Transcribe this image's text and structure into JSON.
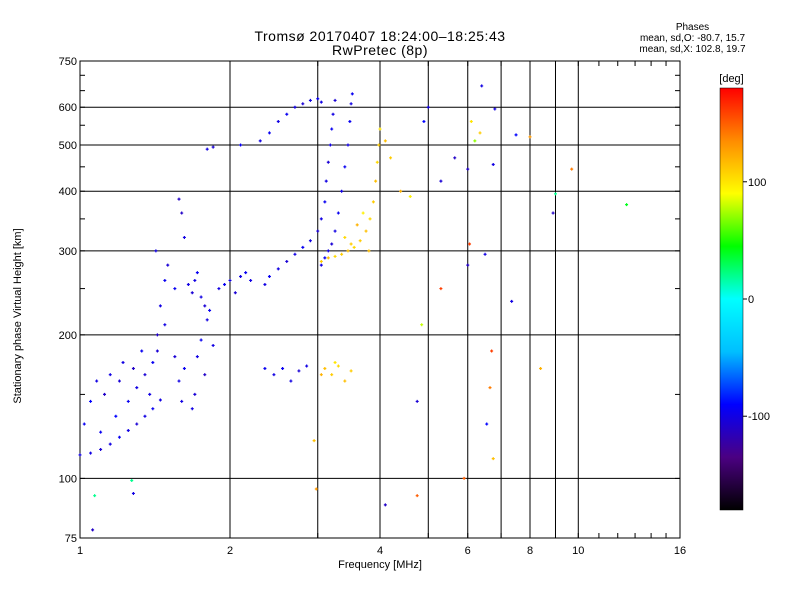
{
  "chart_data": {
    "type": "scatter",
    "title": "Tromsø 20170407 18:24:00–18:25:43",
    "subtitle": "RwPretec (8p)",
    "stats": {
      "header": "Phases",
      "line1": "mean, sd,O: -80.7, 15.7",
      "line2": "mean, sd,X: 102.8, 19.7"
    },
    "xlabel": "Frequency [MHz]",
    "ylabel": "Stationary phase Virtual Height [km]",
    "x_scale": "log",
    "y_scale": "log",
    "xlim": [
      1,
      16
    ],
    "ylim": [
      75,
      750
    ],
    "x_ticks": [
      1,
      2,
      4,
      6,
      8,
      10,
      16
    ],
    "x_tick_labels": [
      "1",
      "2",
      "4",
      "6",
      "8",
      "10",
      "16"
    ],
    "x_grid": [
      1,
      2,
      3,
      4,
      5,
      6,
      7,
      8,
      9,
      10,
      16
    ],
    "y_ticks": [
      75,
      100,
      200,
      300,
      400,
      500,
      600,
      750
    ],
    "y_tick_labels": [
      "75",
      "100",
      "200",
      "300",
      "400",
      "500",
      "600",
      "750"
    ],
    "y_grid": [
      100,
      200,
      300,
      400,
      500,
      600
    ],
    "grid": true,
    "colorbar": {
      "label": "[deg]",
      "range": [
        -180,
        180
      ],
      "ticks": [
        100,
        0,
        -100
      ],
      "tick_labels": [
        "100",
        "0",
        "-100"
      ],
      "colors": [
        "#000000",
        "#4b0082",
        "#0000ff",
        "#00bfff",
        "#00ffff",
        "#00ff00",
        "#ffff00",
        "#ff8c00",
        "#ff0000"
      ]
    },
    "series": [
      {
        "points": [
          [
            1.0,
            112,
            -100
          ],
          [
            1.05,
            113,
            -100
          ],
          [
            1.1,
            115,
            -105
          ],
          [
            1.15,
            118,
            -100
          ],
          [
            1.2,
            122,
            -95
          ],
          [
            1.25,
            126,
            -100
          ],
          [
            1.3,
            130,
            -105
          ],
          [
            1.35,
            135,
            -100
          ],
          [
            1.4,
            140,
            -95
          ],
          [
            1.45,
            146,
            -100
          ],
          [
            1.02,
            130,
            -95
          ],
          [
            1.05,
            145,
            -90
          ],
          [
            1.08,
            160,
            -100
          ],
          [
            1.1,
            125,
            -95
          ],
          [
            1.12,
            150,
            -110
          ],
          [
            1.15,
            165,
            -100
          ],
          [
            1.18,
            135,
            -90
          ],
          [
            1.2,
            160,
            -105
          ],
          [
            1.22,
            175,
            -100
          ],
          [
            1.25,
            145,
            -95
          ],
          [
            1.28,
            170,
            -110
          ],
          [
            1.3,
            155,
            -100
          ],
          [
            1.33,
            185,
            -95
          ],
          [
            1.35,
            165,
            -105
          ],
          [
            1.38,
            150,
            -100
          ],
          [
            1.4,
            175,
            -95
          ],
          [
            1.43,
            200,
            -110
          ],
          [
            1.45,
            230,
            -100
          ],
          [
            1.48,
            260,
            -95
          ],
          [
            1.5,
            280,
            -105
          ],
          [
            1.42,
            300,
            -100
          ],
          [
            1.55,
            250,
            -95
          ],
          [
            1.55,
            180,
            -105
          ],
          [
            1.58,
            160,
            -100
          ],
          [
            1.6,
            145,
            -100
          ],
          [
            1.62,
            170,
            -95
          ],
          [
            1.65,
            255,
            -100
          ],
          [
            1.68,
            245,
            -105
          ],
          [
            1.7,
            260,
            -100
          ],
          [
            1.72,
            270,
            -95
          ],
          [
            1.75,
            240,
            -100
          ],
          [
            1.78,
            230,
            -105
          ],
          [
            1.8,
            215,
            -100
          ],
          [
            1.75,
            195,
            -95
          ],
          [
            1.72,
            180,
            -100
          ],
          [
            1.78,
            165,
            -110
          ],
          [
            1.7,
            150,
            -105
          ],
          [
            1.68,
            140,
            -100
          ],
          [
            1.82,
            225,
            -95
          ],
          [
            1.85,
            190,
            -100
          ],
          [
            1.8,
            490,
            -100
          ],
          [
            1.85,
            495,
            -105
          ],
          [
            1.9,
            250,
            -100
          ],
          [
            1.95,
            255,
            -95
          ],
          [
            2.0,
            260,
            -100
          ],
          [
            2.05,
            245,
            -105
          ],
          [
            2.1,
            265,
            -100
          ],
          [
            2.15,
            270,
            -95
          ],
          [
            2.2,
            260,
            -100
          ],
          [
            2.1,
            500,
            -95
          ],
          [
            2.3,
            510,
            -100
          ],
          [
            2.4,
            530,
            -95
          ],
          [
            2.5,
            560,
            -100
          ],
          [
            2.6,
            580,
            -95
          ],
          [
            2.7,
            600,
            -100
          ],
          [
            2.8,
            610,
            -105
          ],
          [
            2.9,
            620,
            -100
          ],
          [
            3.0,
            625,
            -95
          ],
          [
            3.05,
            615,
            -100
          ],
          [
            2.35,
            255,
            -100
          ],
          [
            2.4,
            265,
            -95
          ],
          [
            2.5,
            275,
            -100
          ],
          [
            2.6,
            285,
            -105
          ],
          [
            2.7,
            295,
            -100
          ],
          [
            2.8,
            305,
            -95
          ],
          [
            2.9,
            315,
            -100
          ],
          [
            3.0,
            330,
            -105
          ],
          [
            3.05,
            350,
            -100
          ],
          [
            3.1,
            380,
            -95
          ],
          [
            3.12,
            420,
            -100
          ],
          [
            3.15,
            460,
            -105
          ],
          [
            3.18,
            500,
            -100
          ],
          [
            3.2,
            540,
            -95
          ],
          [
            3.22,
            580,
            -100
          ],
          [
            3.25,
            620,
            -105
          ],
          [
            3.05,
            280,
            -100
          ],
          [
            3.1,
            290,
            -95
          ],
          [
            3.15,
            300,
            -100
          ],
          [
            3.2,
            310,
            -105
          ],
          [
            3.25,
            330,
            -100
          ],
          [
            3.3,
            360,
            -95
          ],
          [
            3.35,
            400,
            -100
          ],
          [
            3.4,
            450,
            -95
          ],
          [
            3.45,
            500,
            -100
          ],
          [
            3.48,
            560,
            -95
          ],
          [
            3.5,
            610,
            -100
          ],
          [
            3.52,
            640,
            -95
          ],
          [
            2.45,
            165,
            -100
          ],
          [
            2.55,
            170,
            -95
          ],
          [
            2.65,
            160,
            -100
          ],
          [
            2.75,
            168,
            -105
          ],
          [
            2.85,
            172,
            -100
          ],
          [
            2.35,
            170,
            -95
          ],
          [
            3.05,
            285,
            110
          ],
          [
            3.15,
            290,
            115
          ],
          [
            3.25,
            292,
            105
          ],
          [
            3.35,
            295,
            110
          ],
          [
            3.45,
            300,
            115
          ],
          [
            3.55,
            305,
            105
          ],
          [
            3.65,
            315,
            110
          ],
          [
            3.75,
            330,
            115
          ],
          [
            3.82,
            350,
            105
          ],
          [
            3.88,
            380,
            110
          ],
          [
            3.92,
            420,
            115
          ],
          [
            3.95,
            460,
            105
          ],
          [
            3.98,
            500,
            110
          ],
          [
            4.0,
            540,
            100
          ],
          [
            3.6,
            340,
            120
          ],
          [
            3.7,
            360,
            95
          ],
          [
            3.8,
            300,
            115
          ],
          [
            3.5,
            310,
            110
          ],
          [
            3.4,
            320,
            105
          ],
          [
            3.05,
            165,
            120
          ],
          [
            3.1,
            170,
            115
          ],
          [
            3.2,
            165,
            110
          ],
          [
            3.3,
            172,
            105
          ],
          [
            3.4,
            160,
            115
          ],
          [
            3.5,
            168,
            110
          ],
          [
            3.25,
            175,
            100
          ],
          [
            2.95,
            120,
            115
          ],
          [
            2.98,
            95,
            130
          ],
          [
            4.1,
            510,
            115
          ],
          [
            4.2,
            470,
            110
          ],
          [
            4.4,
            400,
            120
          ],
          [
            4.6,
            390,
            95
          ],
          [
            4.85,
            210,
            80
          ],
          [
            4.75,
            145,
            -105
          ],
          [
            5.0,
            600,
            -100
          ],
          [
            5.3,
            250,
            160
          ],
          [
            4.9,
            560,
            -90
          ],
          [
            4.75,
            92,
            150
          ],
          [
            4.1,
            88,
            -110
          ],
          [
            5.3,
            420,
            -105
          ],
          [
            5.65,
            470,
            -110
          ],
          [
            5.9,
            100,
            150
          ],
          [
            6.0,
            445,
            -110
          ],
          [
            6.0,
            280,
            -110
          ],
          [
            6.05,
            310,
            160
          ],
          [
            6.1,
            560,
            100
          ],
          [
            6.2,
            510,
            70
          ],
          [
            6.35,
            530,
            110
          ],
          [
            6.4,
            665,
            -100
          ],
          [
            6.5,
            295,
            -100
          ],
          [
            6.8,
            595,
            -100
          ],
          [
            6.75,
            455,
            -100
          ],
          [
            6.7,
            185,
            160
          ],
          [
            6.65,
            155,
            140
          ],
          [
            6.75,
            110,
            115
          ],
          [
            6.55,
            130,
            -90
          ],
          [
            7.35,
            235,
            -100
          ],
          [
            7.5,
            525,
            -90
          ],
          [
            8.0,
            520,
            130
          ],
          [
            8.4,
            170,
            120
          ],
          [
            8.9,
            360,
            -110
          ],
          [
            9.0,
            395,
            20
          ],
          [
            9.7,
            445,
            140
          ],
          [
            12.5,
            375,
            40
          ],
          [
            1.07,
            92,
            20
          ],
          [
            1.27,
            99,
            20
          ],
          [
            1.28,
            93,
            -100
          ],
          [
            1.06,
            78,
            -110
          ],
          [
            1.43,
            185,
            -105
          ],
          [
            1.48,
            210,
            -100
          ],
          [
            1.58,
            385,
            -110
          ],
          [
            1.6,
            360,
            -110
          ],
          [
            1.62,
            320,
            -100
          ]
        ]
      }
    ]
  }
}
